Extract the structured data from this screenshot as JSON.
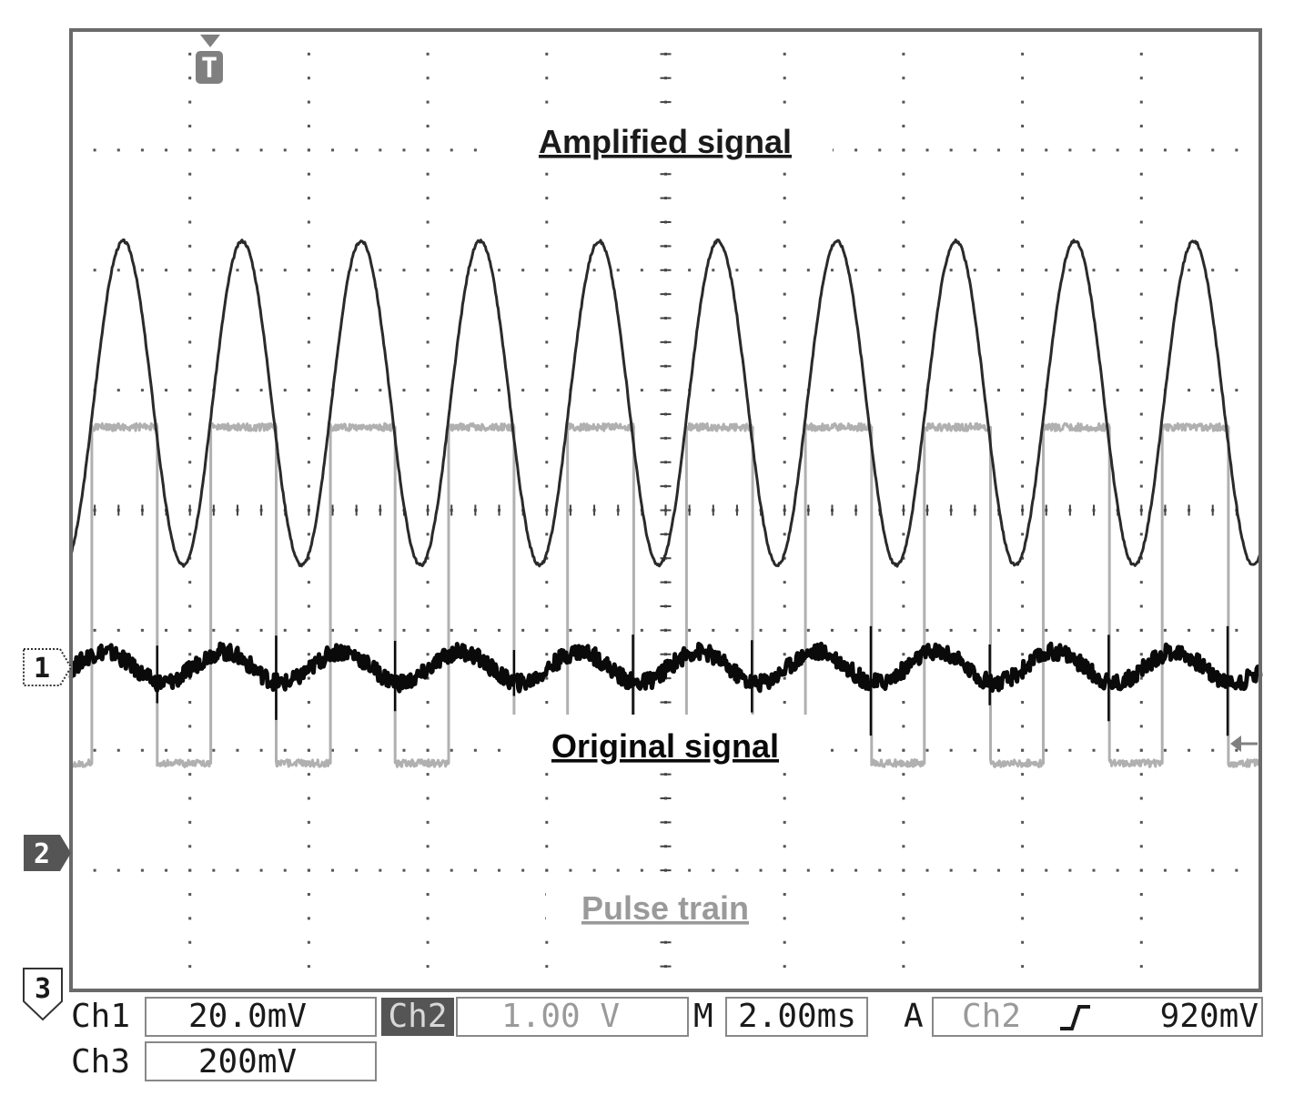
{
  "chart_data": {
    "type": "line",
    "instrument": "oscilloscope",
    "x_unit": "ms",
    "x_range": [
      0,
      20
    ],
    "grid": true,
    "graticule": {
      "divisions_x": 10,
      "divisions_y": 8
    },
    "trigger_marker": "T",
    "series": [
      {
        "name": "Amplified signal",
        "channel": "1",
        "color": "#2a2a2a",
        "waveform": "sine",
        "period_ms": 2.0,
        "amplitude_div": 1.35,
        "center_div": 2.2,
        "first_peak_ms": 0.88
      },
      {
        "name": "Original signal",
        "channel": "1",
        "color": "#0a0a0a",
        "waveform": "sine",
        "period_ms": 2.0,
        "amplitude_div": 0.13,
        "center_div": 0.0,
        "first_peak_ms": 0.55
      },
      {
        "name": "Pulse train",
        "channel": "2",
        "color": "#b0b0b0",
        "waveform": "square",
        "period_ms": 2.0,
        "high_div": 2.0,
        "low_div": -0.8,
        "first_rising_edge_ms": 0.35,
        "duty": 0.55
      }
    ],
    "ch1_scale": "20.0mV",
    "ch2_scale": "1.00 V",
    "ch3_scale": "200mV",
    "time_scale": "2.00ms",
    "trigger_source": "Ch2",
    "trigger_level": "920mV"
  },
  "labels": {
    "amplified": "Amplified signal",
    "original": "Original signal",
    "pulse": "Pulse train",
    "marker_1": "1",
    "marker_2": "2",
    "marker_3": "3",
    "trigger": "T"
  },
  "status": {
    "ch1_label": "Ch1",
    "ch1_value": "20.0mV",
    "ch2_label": "Ch2",
    "ch2_value": "1.00 V",
    "m_label": "M",
    "m_value": "2.00ms",
    "a_label": "A",
    "trig_source": "Ch2",
    "trig_slope_icon": "rising-edge",
    "trig_level": "920mV",
    "ch3_label": "Ch3",
    "ch3_value": "200mV"
  }
}
